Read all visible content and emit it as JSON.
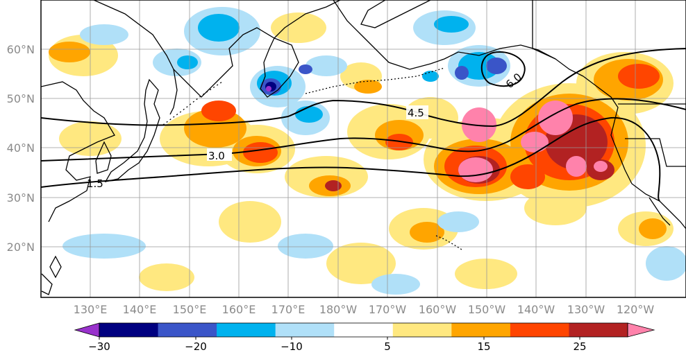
{
  "map": {
    "lat_labels": [
      "60°N",
      "50°N",
      "40°N",
      "30°N",
      "20°N"
    ],
    "lon_labels": [
      "130°E",
      "140°E",
      "150°E",
      "160°E",
      "170°E",
      "180°W",
      "170°W",
      "160°W",
      "150°W",
      "140°W",
      "130°W",
      "120°W"
    ],
    "contour_labels": [
      "1.5",
      "3.0",
      "4.5",
      "6.0"
    ],
    "colors": {
      "ocean": "#ffffff",
      "land_outline": "#000000",
      "grid": "#999999",
      "tick_label": "#8a8a8a"
    }
  },
  "colorbar": {
    "tick_labels": [
      "−30",
      "−20",
      "−10",
      "5",
      "15",
      "25"
    ],
    "bins": [
      "#9932cc",
      "#000080",
      "#3a55c8",
      "#00b2ee",
      "#b0e0f8",
      "#ffffff",
      "#ffe880",
      "#ffa500",
      "#ff4500",
      "#b22222",
      "#ff82ab"
    ]
  }
}
